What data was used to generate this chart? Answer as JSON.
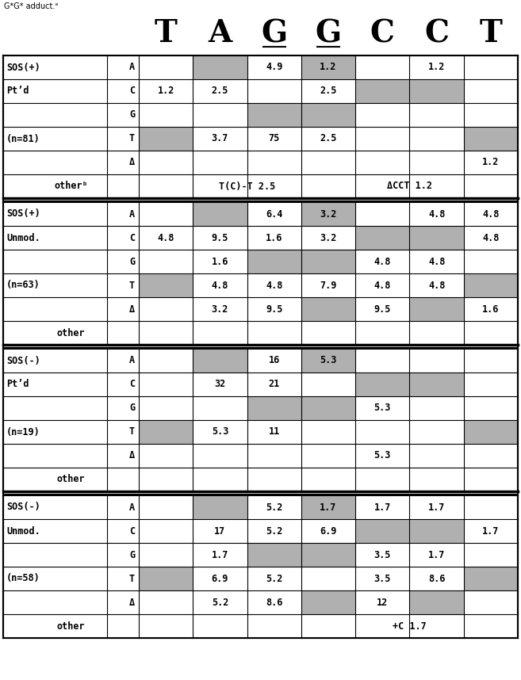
{
  "header_letters": [
    "T",
    "A",
    "G",
    "G",
    "C",
    "C",
    "T"
  ],
  "underlined_cols": [
    2,
    3
  ],
  "sections": [
    {
      "label1": "SOS(+)",
      "label2": "Pt’d",
      "n_label": "(n=81)",
      "rows": [
        {
          "base": "A",
          "cells": [
            "",
            "",
            "4.9",
            "1.2",
            "",
            "1.2",
            ""
          ],
          "shaded": [
            1,
            3
          ]
        },
        {
          "base": "C",
          "cells": [
            "1.2",
            "2.5",
            "",
            "2.5",
            "",
            "",
            ""
          ],
          "shaded": [
            4,
            5
          ]
        },
        {
          "base": "G",
          "cells": [
            "",
            "",
            "",
            "",
            "",
            "",
            ""
          ],
          "shaded": [
            2,
            3
          ]
        },
        {
          "base": "T",
          "cells": [
            "",
            "3.7",
            "75",
            "2.5",
            "",
            "",
            ""
          ],
          "shaded": [
            0,
            6
          ]
        },
        {
          "base": "Δ",
          "cells": [
            "",
            "",
            "",
            "",
            "",
            "",
            "1.2"
          ],
          "shaded": []
        },
        {
          "base": "otherᵇ",
          "cells": [
            "",
            "T(C)-T 2.5",
            "",
            "",
            "ΔCCT 1.2",
            "",
            ""
          ],
          "is_other": true,
          "shaded": []
        }
      ]
    },
    {
      "label1": "SOS(+)",
      "label2": "Unmod.",
      "n_label": "(n=63)",
      "rows": [
        {
          "base": "A",
          "cells": [
            "",
            "",
            "6.4",
            "3.2",
            "",
            "4.8",
            "4.8"
          ],
          "shaded": [
            1,
            3
          ]
        },
        {
          "base": "C",
          "cells": [
            "4.8",
            "9.5",
            "1.6",
            "3.2",
            "",
            "",
            "4.8"
          ],
          "shaded": [
            4,
            5
          ]
        },
        {
          "base": "G",
          "cells": [
            "",
            "1.6",
            "",
            "",
            "4.8",
            "4.8",
            ""
          ],
          "shaded": [
            2,
            3
          ]
        },
        {
          "base": "T",
          "cells": [
            "",
            "4.8",
            "4.8",
            "7.9",
            "4.8",
            "4.8",
            ""
          ],
          "shaded": [
            0,
            6
          ]
        },
        {
          "base": "Δ",
          "cells": [
            "",
            "3.2",
            "9.5",
            "",
            "9.5",
            "",
            "1.6"
          ],
          "shaded": [
            3,
            5
          ]
        },
        {
          "base": "other",
          "cells": [
            "",
            "",
            "",
            "",
            "",
            "",
            ""
          ],
          "is_other": true,
          "shaded": []
        }
      ]
    },
    {
      "label1": "SOS(-)",
      "label2": "Pt’d",
      "n_label": "(n=19)",
      "rows": [
        {
          "base": "A",
          "cells": [
            "",
            "",
            "16",
            "5.3",
            "",
            "",
            ""
          ],
          "shaded": [
            1,
            3
          ]
        },
        {
          "base": "C",
          "cells": [
            "",
            "32",
            "21",
            "",
            "",
            "",
            ""
          ],
          "shaded": [
            4,
            5
          ]
        },
        {
          "base": "G",
          "cells": [
            "",
            "",
            "",
            "",
            "5.3",
            "",
            ""
          ],
          "shaded": [
            2,
            3
          ]
        },
        {
          "base": "T",
          "cells": [
            "",
            "5.3",
            "11",
            "",
            "",
            "",
            ""
          ],
          "shaded": [
            0,
            6
          ]
        },
        {
          "base": "Δ",
          "cells": [
            "",
            "",
            "",
            "",
            "5.3",
            "",
            ""
          ],
          "shaded": []
        },
        {
          "base": "other",
          "cells": [
            "",
            "",
            "",
            "",
            "",
            "",
            ""
          ],
          "is_other": true,
          "shaded": []
        }
      ]
    },
    {
      "label1": "SOS(-)",
      "label2": "Unmod.",
      "n_label": "(n=58)",
      "rows": [
        {
          "base": "A",
          "cells": [
            "",
            "",
            "5.2",
            "1.7",
            "1.7",
            "1.7",
            ""
          ],
          "shaded": [
            1,
            3
          ]
        },
        {
          "base": "C",
          "cells": [
            "",
            "17",
            "5.2",
            "6.9",
            "",
            "",
            "1.7"
          ],
          "shaded": [
            4,
            5
          ]
        },
        {
          "base": "G",
          "cells": [
            "",
            "1.7",
            "",
            "",
            "3.5",
            "1.7",
            ""
          ],
          "shaded": [
            2,
            3
          ]
        },
        {
          "base": "T",
          "cells": [
            "",
            "6.9",
            "5.2",
            "",
            "3.5",
            "8.6",
            ""
          ],
          "shaded": [
            0,
            6
          ]
        },
        {
          "base": "Δ",
          "cells": [
            "",
            "5.2",
            "8.6",
            "",
            "12",
            "",
            ""
          ],
          "shaded": [
            3,
            5
          ]
        },
        {
          "base": "other",
          "cells": [
            "",
            "",
            "",
            "",
            "+C 1.7",
            "",
            ""
          ],
          "is_other": true,
          "shaded": []
        }
      ]
    }
  ],
  "shade_color": "#b0b0b0",
  "bg_color": "white",
  "line_color": "black"
}
